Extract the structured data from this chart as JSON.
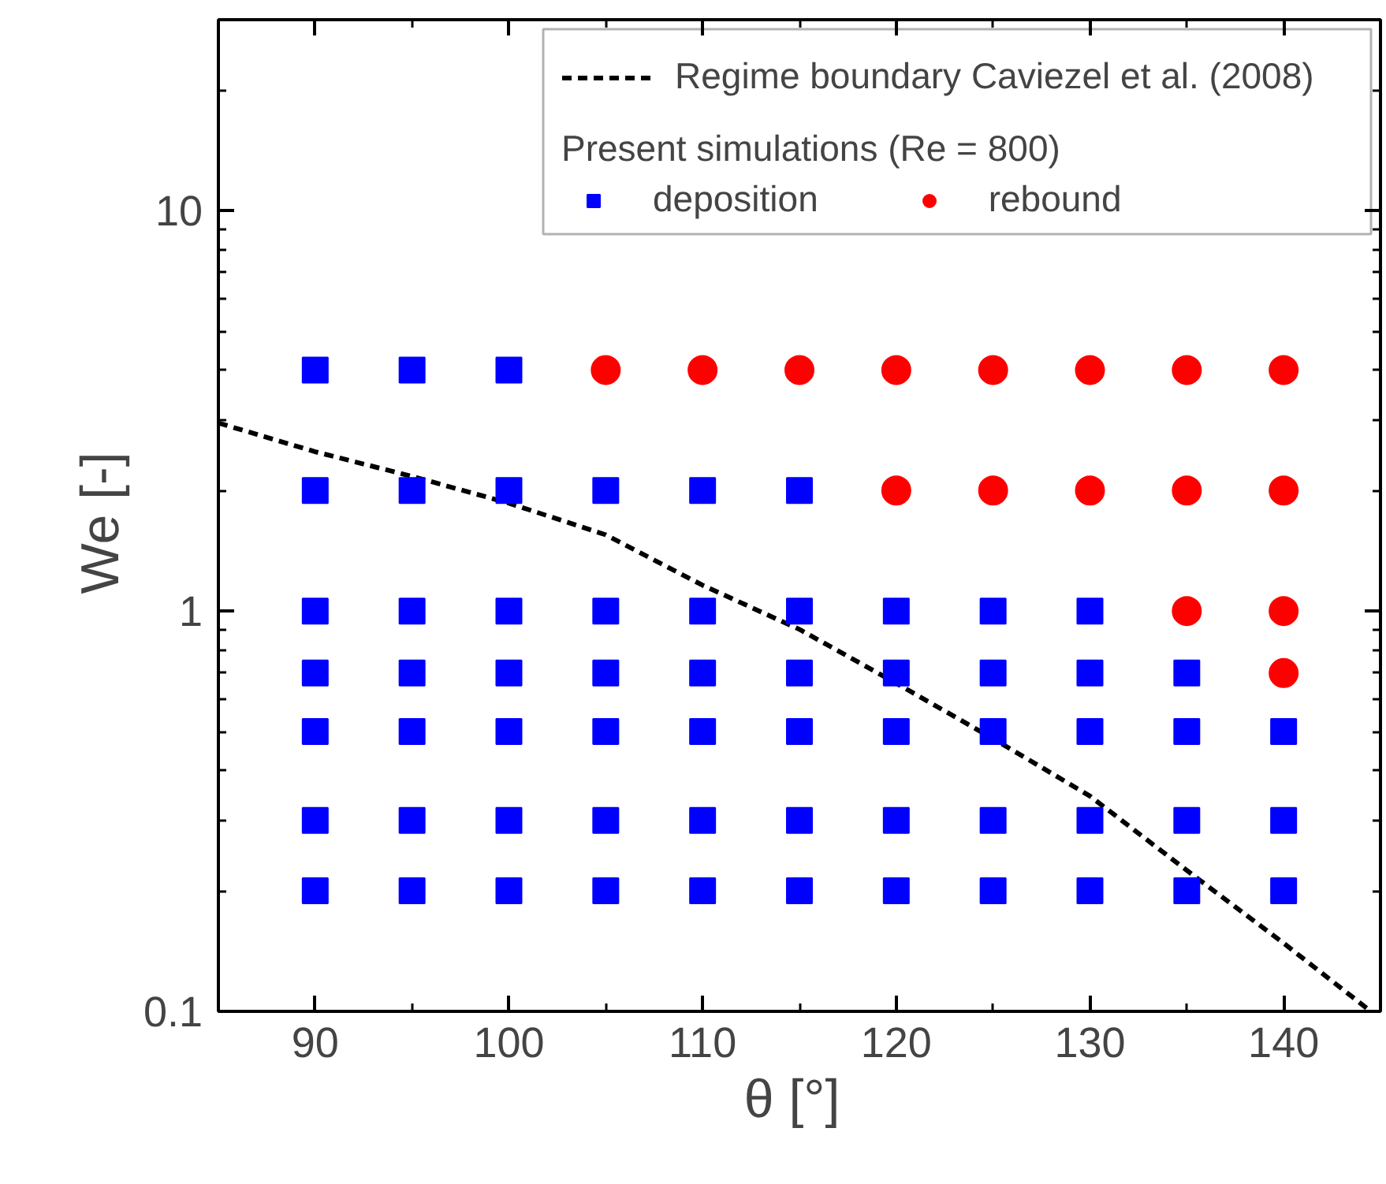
{
  "chart_data": {
    "type": "scatter",
    "xlabel": "θ  [°]",
    "ylabel": "We  [-]",
    "legend_title": "Present simulations (Re = 800)",
    "xlim": [
      85,
      145
    ],
    "ylim": [
      0.1,
      30
    ],
    "xticks": [
      90,
      100,
      110,
      120,
      130,
      140
    ],
    "yticks": [
      0.1,
      1,
      10
    ],
    "log": "y",
    "grid": false,
    "legend": "top right",
    "series": [
      {
        "name": "Regime boundary Caviezel et al. (2008)",
        "type": "line",
        "line_style": "dashed",
        "color": "#000000",
        "x": [
          85,
          90,
          95,
          100,
          105,
          110,
          115,
          120,
          125,
          130,
          135,
          140,
          144.5
        ],
        "values": [
          2.95,
          2.5,
          2.17,
          1.86,
          1.55,
          1.16,
          0.9,
          0.66,
          0.48,
          0.345,
          0.225,
          0.148,
          0.1
        ]
      },
      {
        "name": "deposition",
        "marker": "square",
        "color": "#0000ff",
        "x": [
          90,
          95,
          100,
          90,
          95,
          100,
          105,
          110,
          115,
          90,
          95,
          100,
          105,
          110,
          115,
          120,
          125,
          130,
          90,
          95,
          100,
          105,
          110,
          115,
          120,
          125,
          130,
          135,
          90,
          95,
          100,
          105,
          110,
          115,
          120,
          125,
          130,
          135,
          140,
          90,
          95,
          100,
          105,
          110,
          115,
          120,
          125,
          130,
          135,
          140,
          90,
          95,
          100,
          105,
          110,
          115,
          120,
          125,
          130,
          135,
          140
        ],
        "values": [
          4,
          4,
          4,
          2,
          2,
          2,
          2,
          2,
          2,
          1,
          1,
          1,
          1,
          1,
          1,
          1,
          1,
          1,
          0.7,
          0.7,
          0.7,
          0.7,
          0.7,
          0.7,
          0.7,
          0.7,
          0.7,
          0.7,
          0.5,
          0.5,
          0.5,
          0.5,
          0.5,
          0.5,
          0.5,
          0.5,
          0.5,
          0.5,
          0.5,
          0.3,
          0.3,
          0.3,
          0.3,
          0.3,
          0.3,
          0.3,
          0.3,
          0.3,
          0.3,
          0.3,
          0.2,
          0.2,
          0.2,
          0.2,
          0.2,
          0.2,
          0.2,
          0.2,
          0.2,
          0.2,
          0.2
        ]
      },
      {
        "name": "rebound",
        "marker": "circle",
        "color": "#ff0000",
        "x": [
          105,
          110,
          115,
          120,
          125,
          130,
          135,
          140,
          120,
          125,
          130,
          135,
          140,
          135,
          140,
          140
        ],
        "values": [
          4,
          4,
          4,
          4,
          4,
          4,
          4,
          4,
          2,
          2,
          2,
          2,
          2,
          1,
          1,
          0.7
        ]
      }
    ]
  }
}
